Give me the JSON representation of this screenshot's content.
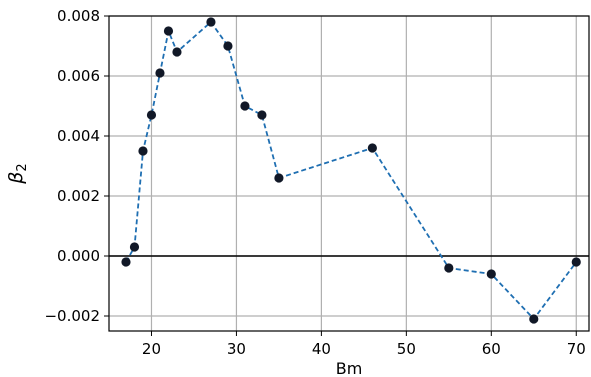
{
  "chart_data": {
    "type": "line",
    "title": "",
    "xlabel": "Bm",
    "ylabel_symbol": "β",
    "ylabel_subscript": "2",
    "xlim": [
      15,
      71.5
    ],
    "ylim": [
      -0.0025,
      0.008
    ],
    "xticks": [
      20,
      30,
      40,
      50,
      60,
      70
    ],
    "xtick_labels": [
      "20",
      "30",
      "40",
      "50",
      "60",
      "70"
    ],
    "yticks": [
      -0.002,
      0,
      0.002,
      0.004,
      0.006,
      0.008
    ],
    "ytick_labels": [
      "−0.002",
      "0.000",
      "0.002",
      "0.004",
      "0.006",
      "0.008"
    ],
    "grid": true,
    "reference_line_y": 0,
    "line_style": "dashed",
    "colors": {
      "line": "#1f6fb2",
      "marker": "#111827",
      "grid": "#b0b0b0",
      "zero_line": "#000000"
    },
    "series": [
      {
        "x": [
          17,
          18,
          19,
          20,
          21,
          22,
          23,
          27,
          29,
          31,
          33,
          35,
          46,
          55,
          60,
          65,
          70
        ],
        "y": [
          -0.0002,
          0.0003,
          0.0035,
          0.0047,
          0.0061,
          0.0075,
          0.0068,
          0.0078,
          0.007,
          0.005,
          0.0047,
          0.0026,
          0.0036,
          -0.0004,
          -0.0006,
          -0.0021,
          -0.0002
        ]
      }
    ]
  }
}
